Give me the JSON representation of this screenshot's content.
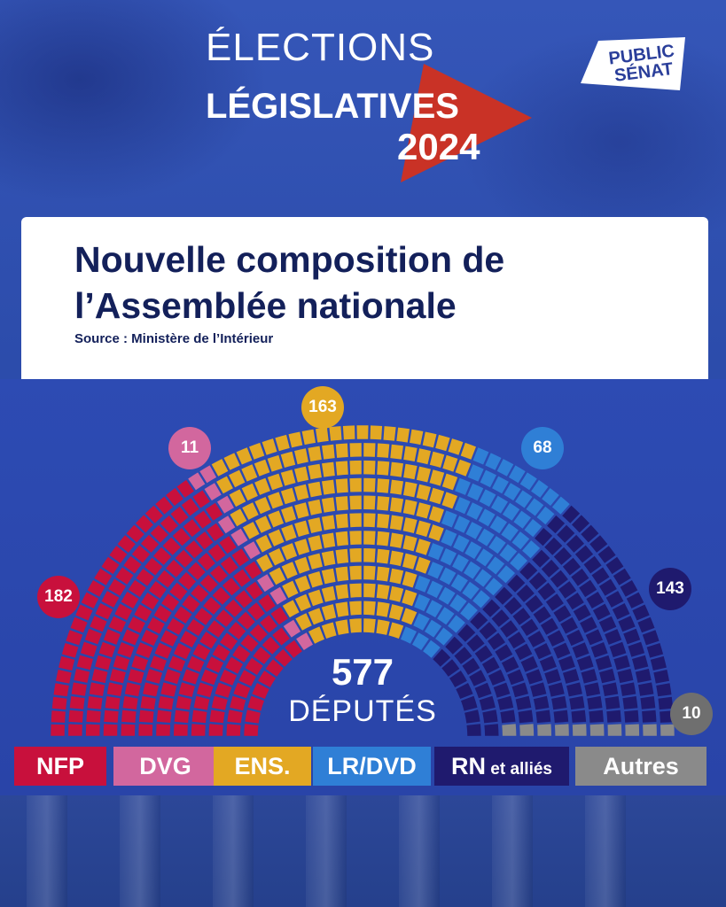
{
  "header": {
    "line1": "ÉLECTIONS",
    "line2": "LÉGISLATIVES",
    "line3": "2024",
    "logo_text": "PUBLIC SÉNAT"
  },
  "card": {
    "title": "Nouvelle composition de l’Assemblée nationale",
    "source": "Source : Ministère de l’Intérieur"
  },
  "total": {
    "value": "577",
    "label": "DÉPUTÉS"
  },
  "colors": {
    "NFP": "#c8103c",
    "DVG": "#d2679e",
    "ENS": "#e3a823",
    "LRDVD": "#2f7fd6",
    "RN": "#1f1a6e",
    "Autres": "#8a8a8a"
  },
  "chart_data": {
    "type": "parliament",
    "total": 577,
    "groups": [
      {
        "label": "NFP",
        "seats": 182,
        "color": "#c8103c",
        "badge": "182"
      },
      {
        "label": "DVG",
        "seats": 11,
        "color": "#d2679e",
        "badge": "11"
      },
      {
        "label": "ENS.",
        "seats": 163,
        "color": "#e3a823",
        "badge": "163"
      },
      {
        "label": "LR/DVD",
        "seats": 68,
        "color": "#2f7fd6",
        "badge": "68"
      },
      {
        "label": "RN et alliés",
        "seats": 143,
        "color": "#1f1a6e",
        "badge": "143"
      },
      {
        "label": "Autres",
        "seats": 10,
        "color": "#8a8a8a",
        "badge": "10"
      }
    ]
  },
  "legend": [
    {
      "main": "NFP",
      "small": ""
    },
    {
      "main": "DVG",
      "small": ""
    },
    {
      "main": "ENS.",
      "small": ""
    },
    {
      "main": "LR/DVD",
      "small": ""
    },
    {
      "main": "RN",
      "small": " et alliés"
    },
    {
      "main": "Autres",
      "small": ""
    }
  ]
}
